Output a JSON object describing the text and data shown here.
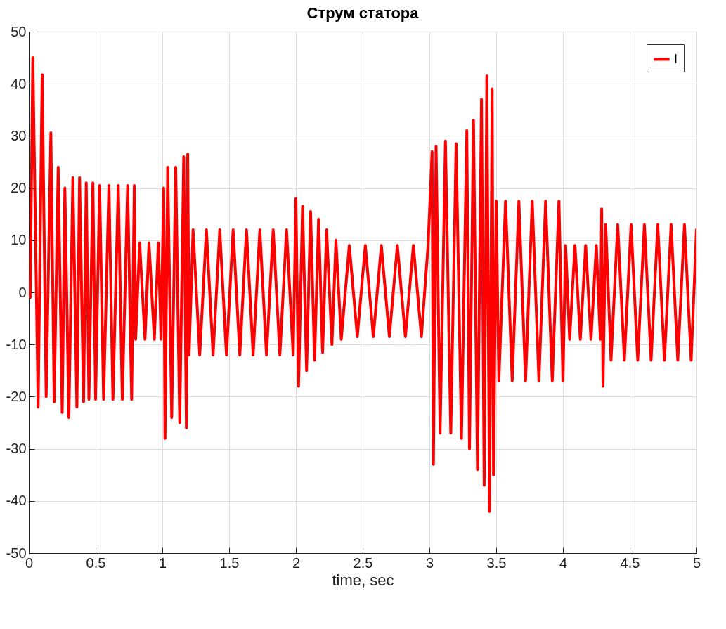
{
  "chart_data": {
    "type": "line",
    "title": "Струм статора",
    "xlabel": "time, sec",
    "xlim": [
      0,
      5
    ],
    "xticks": [
      0,
      0.5,
      1,
      1.5,
      2,
      2.5,
      3,
      3.5,
      4,
      4.5,
      5
    ],
    "ylim": [
      -50,
      50
    ],
    "yticks": [
      -50,
      -40,
      -30,
      -20,
      -10,
      0,
      10,
      20,
      30,
      40,
      50
    ],
    "grid": true,
    "legend": "top right",
    "line_style": "solid",
    "marker": "none",
    "series": [
      {
        "name": "I",
        "color": "#ff0000",
        "x": [
          0,
          0.01,
          0.03,
          0.07,
          0.1,
          0.13,
          0.165,
          0.19,
          0.22,
          0.25,
          0.27,
          0.3,
          0.33,
          0.36,
          0.38,
          0.41,
          0.43,
          0.45,
          0.48,
          0.5,
          0.53,
          0.56,
          0.6,
          0.63,
          0.67,
          0.7,
          0.74,
          0.77,
          0.79,
          0.8,
          0.83,
          0.87,
          0.9,
          0.94,
          0.97,
          0.99,
          1.01,
          1.02,
          1.04,
          1.07,
          1.1,
          1.13,
          1.16,
          1.18,
          1.19,
          1.2,
          1.23,
          1.28,
          1.33,
          1.38,
          1.43,
          1.48,
          1.53,
          1.58,
          1.63,
          1.68,
          1.73,
          1.78,
          1.83,
          1.88,
          1.93,
          1.98,
          2.0,
          2.02,
          2.05,
          2.08,
          2.11,
          2.14,
          2.17,
          2.2,
          2.23,
          2.27,
          2.3,
          2.34,
          2.4,
          2.46,
          2.52,
          2.58,
          2.64,
          2.7,
          2.76,
          2.82,
          2.88,
          2.94,
          2.99,
          3.02,
          3.03,
          3.05,
          3.08,
          3.12,
          3.16,
          3.2,
          3.24,
          3.28,
          3.3,
          3.33,
          3.36,
          3.39,
          3.41,
          3.43,
          3.45,
          3.47,
          3.48,
          3.5,
          3.52,
          3.57,
          3.62,
          3.67,
          3.72,
          3.77,
          3.82,
          3.87,
          3.92,
          3.97,
          4.0,
          4.02,
          4.05,
          4.09,
          4.13,
          4.17,
          4.21,
          4.25,
          4.28,
          4.29,
          4.3,
          4.32,
          4.36,
          4.41,
          4.46,
          4.51,
          4.56,
          4.61,
          4.66,
          4.71,
          4.76,
          4.81,
          4.86,
          4.91,
          4.96,
          5.0
        ],
        "values": [
          0,
          -1,
          45,
          -22,
          41.7,
          -20,
          30.6,
          -21,
          24,
          -23,
          20,
          -24,
          22,
          -22,
          22,
          -21,
          21,
          -20.5,
          21,
          -20.5,
          20.5,
          -20.5,
          20.5,
          -20.5,
          20.5,
          -20.5,
          20.5,
          -20.5,
          20.5,
          -9,
          9.5,
          -9,
          9.5,
          -9,
          9.5,
          -9,
          20,
          -28,
          24,
          -24,
          24,
          -25,
          26,
          -26,
          26.5,
          -12,
          12,
          -12,
          12,
          -12,
          12,
          -12,
          12,
          -12,
          12,
          -12,
          12,
          -12,
          12,
          -12,
          12,
          -12,
          18,
          -18,
          16.5,
          -15,
          15.5,
          -13,
          14,
          -11.5,
          12,
          -10,
          10,
          -9,
          9,
          -8.5,
          9,
          -8.5,
          9,
          -8.5,
          9,
          -8.5,
          9,
          -8.5,
          9,
          27,
          -33,
          28,
          -27,
          29,
          -27,
          28.5,
          -28,
          31,
          -30,
          33,
          -34,
          37,
          -37,
          41.5,
          -42,
          39,
          -35,
          17.5,
          -17,
          17.5,
          -17,
          17.5,
          -17,
          17.5,
          -17,
          17.5,
          -17,
          17.5,
          -17,
          9,
          -9,
          9,
          -9,
          9,
          -9,
          9,
          -9,
          16,
          -18,
          13,
          -13,
          13,
          -13,
          13,
          -13,
          13,
          -13,
          13,
          -13,
          13,
          -13,
          13,
          -13,
          12
        ]
      }
    ]
  }
}
